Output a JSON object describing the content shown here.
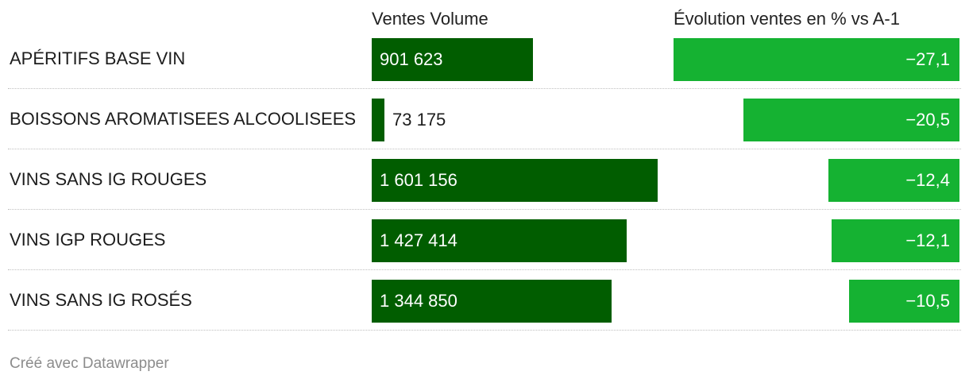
{
  "chart_data": {
    "type": "bar",
    "headers": {
      "volume": "Ventes Volume",
      "evolution": "Évolution ventes en % vs A-1"
    },
    "categories": [
      "APÉRITIFS BASE VIN",
      "BOISSONS AROMATISEES ALCOOLISEES",
      "VINS SANS IG ROUGES",
      "VINS IGP ROUGES",
      "VINS SANS IG ROSÉS"
    ],
    "series": [
      {
        "values": [
          901623,
          73175,
          1601156,
          1427414,
          1344850
        ],
        "labels": [
          "901 623",
          "73 175",
          "1 601 156",
          "1 427 414",
          "1 344 850"
        ],
        "color": "#015d00",
        "xlim": [
          0,
          1601156
        ]
      },
      {
        "values": [
          -27.1,
          -20.5,
          -12.4,
          -12.1,
          -10.5
        ],
        "labels": [
          "−27,1",
          "−20,5",
          "−12,4",
          "−12,1",
          "−10,5"
        ],
        "color": "#15b232",
        "xlim": [
          -27.1,
          0
        ]
      }
    ],
    "grid": false,
    "legend": "none"
  },
  "footer": {
    "credit": "Créé avec Datawrapper"
  }
}
